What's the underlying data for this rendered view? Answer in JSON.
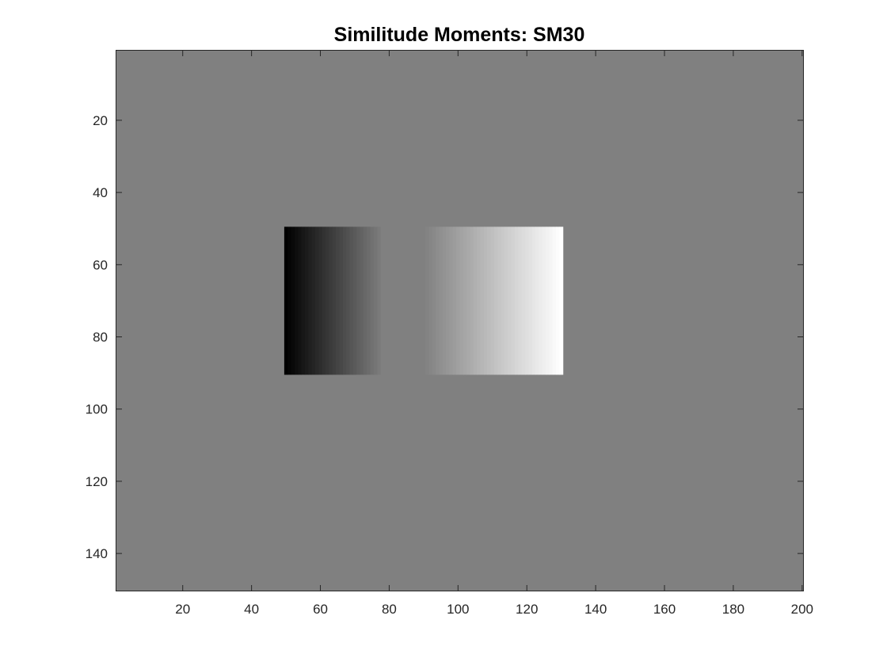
{
  "chart_data": {
    "type": "heatmap",
    "title": "Similitude Moments: SM30",
    "xlabel": "",
    "ylabel": "",
    "xlim": [
      0.5,
      200.5
    ],
    "ylim": [
      150.5,
      0.5
    ],
    "y_direction": "reversed",
    "colormap": "gray",
    "grid": false,
    "background_value_color": "#808080",
    "xticks": [
      20,
      40,
      60,
      80,
      100,
      120,
      140,
      160,
      180,
      200
    ],
    "yticks": [
      20,
      40,
      60,
      80,
      100,
      120,
      140
    ],
    "xtick_labels": [
      "20",
      "40",
      "60",
      "80",
      "100",
      "120",
      "140",
      "160",
      "180",
      "200"
    ],
    "ytick_labels": [
      "20",
      "40",
      "60",
      "80",
      "100",
      "120",
      "140"
    ],
    "regions": [
      {
        "name": "left-gradient",
        "x_range": [
          50,
          77
        ],
        "y_range": [
          50,
          90
        ],
        "gradient": "dark-to-background",
        "start_color": "#000000",
        "end_color": "#7a7a7a"
      },
      {
        "name": "middle-gap",
        "x_range": [
          78,
          90
        ],
        "y_range": [
          50,
          90
        ],
        "gradient": "flat",
        "start_color": "#808080",
        "end_color": "#808080"
      },
      {
        "name": "right-gradient",
        "x_range": [
          91,
          130
        ],
        "y_range": [
          50,
          90
        ],
        "gradient": "background-to-light",
        "start_color": "#838383",
        "end_color": "#ffffff"
      }
    ]
  }
}
